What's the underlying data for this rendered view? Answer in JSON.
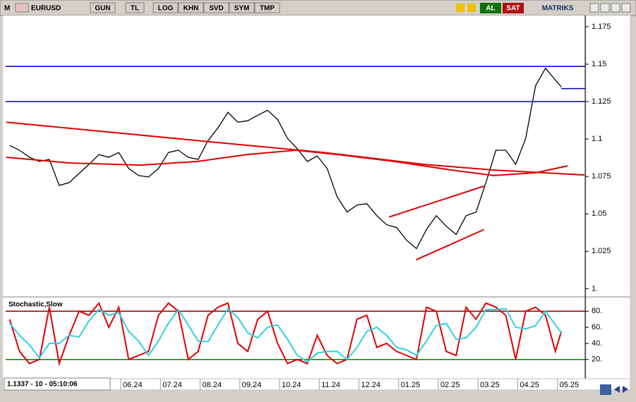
{
  "toolbar": {
    "logo": "M",
    "symbol": "EURUSD",
    "buttons": [
      "GUN",
      "TL",
      "LOG",
      "KHN",
      "SVD",
      "SYM",
      "TMP"
    ],
    "buy": "AL",
    "sell": "SAT",
    "brand": "MATRIKS"
  },
  "status": "1.1337 - 10 - 05:10:06",
  "chart_data": [
    {
      "type": "line",
      "x": [
        3.2,
        3.45,
        3.7,
        3.95,
        4.2,
        4.45,
        4.7,
        4.95,
        5.2,
        5.45,
        5.7,
        5.95,
        6.2,
        6.45,
        6.7,
        6.95,
        7.2,
        7.45,
        7.7,
        7.95,
        8.2,
        8.45,
        8.7,
        8.95,
        9.2,
        9.45,
        9.7,
        9.95,
        10.2,
        10.45,
        10.7,
        10.95,
        11.2,
        11.45,
        11.7,
        11.95,
        12.2,
        12.45,
        12.7,
        12.95,
        13.2,
        13.45,
        13.7,
        13.95,
        14.2,
        14.45,
        14.7,
        14.95,
        15.2,
        15.45,
        15.7,
        15.95,
        16.2,
        16.45,
        16.7,
        16.95,
        17.1
      ],
      "xlim": [
        3.1,
        17.7
      ],
      "xticks": [
        {
          "value": 6,
          "label": "06.24"
        },
        {
          "value": 7,
          "label": "07.24"
        },
        {
          "value": 8,
          "label": "08.24"
        },
        {
          "value": 9,
          "label": "09.24"
        },
        {
          "value": 10,
          "label": "10.24"
        },
        {
          "value": 11,
          "label": "11.24"
        },
        {
          "value": 12,
          "label": "12.24"
        },
        {
          "value": 13,
          "label": "01.25"
        },
        {
          "value": 14,
          "label": "02.25"
        },
        {
          "value": 15,
          "label": "03.25"
        },
        {
          "value": 16,
          "label": "04.25"
        },
        {
          "value": 17,
          "label": "05.25"
        }
      ],
      "ylim": [
        0.995,
        1.1825
      ],
      "yticks": [
        1.175,
        1.15,
        1.125,
        1.1,
        1.075,
        1.05,
        1.025,
        {
          "value": 1,
          "label": "1."
        }
      ],
      "series": [
        {
          "color": "#000000",
          "values": [
            1.0957,
            1.0925,
            1.0878,
            1.085,
            1.0864,
            1.069,
            1.0709,
            1.077,
            1.0831,
            1.0896,
            1.0878,
            1.091,
            1.0803,
            1.0756,
            1.0746,
            1.0803,
            1.091,
            1.0925,
            1.0878,
            1.0864,
            1.099,
            1.1075,
            1.1178,
            1.1112,
            1.1122,
            1.1159,
            1.1192,
            1.1131,
            1.1004,
            1.0934,
            1.085,
            1.0887,
            1.0803,
            1.0615,
            1.0512,
            1.0559,
            1.0568,
            1.0488,
            1.0427,
            1.0409,
            1.0324,
            1.0268,
            1.0395,
            1.0488,
            1.0418,
            1.0362,
            1.0488,
            1.0512,
            1.0709,
            1.0925,
            1.0925,
            1.0831,
            1.1004,
            1.1356,
            1.1473,
            1.1394,
            1.1347
          ]
        },
        {
          "color": "#e00000",
          "x": [
            3.12,
            8.28,
            11.12,
            13.62,
            15.4,
            17.68
          ],
          "values": [
            1.1112,
            1.0981,
            1.091,
            1.0831,
            1.0793,
            1.076
          ]
        },
        {
          "color": "#e00000",
          "x": [
            3.12,
            4.72,
            6.5,
            7.92,
            9.17,
            10.41,
            11.48,
            12.9,
            14.33,
            15.4,
            16.46,
            17.26
          ],
          "values": [
            1.0878,
            1.084,
            1.0826,
            1.085,
            1.0896,
            1.0925,
            1.0896,
            1.085,
            1.0793,
            1.0756,
            1.0775,
            1.0821
          ]
        },
        {
          "color": "#e00000",
          "x": [
            12.76,
            15.15
          ],
          "values": [
            1.0479,
            1.0685
          ]
        },
        {
          "color": "#e00000",
          "x": [
            13.44,
            15.15
          ],
          "values": [
            1.0193,
            1.0395
          ]
        }
      ],
      "hlines": [
        {
          "value": 1.1485,
          "color": "#0000c0"
        },
        {
          "value": 1.125,
          "color": "#0000c0"
        }
      ],
      "last": {
        "value": 1.1337,
        "color": "#0000c0"
      }
    },
    {
      "type": "line",
      "title": "Stochastic,Slow",
      "x": [
        3.2,
        3.45,
        3.7,
        3.95,
        4.2,
        4.45,
        4.7,
        4.95,
        5.2,
        5.45,
        5.7,
        5.95,
        6.2,
        6.45,
        6.7,
        6.95,
        7.2,
        7.45,
        7.7,
        7.95,
        8.2,
        8.45,
        8.7,
        8.95,
        9.2,
        9.45,
        9.7,
        9.95,
        10.2,
        10.45,
        10.7,
        10.95,
        11.2,
        11.45,
        11.7,
        11.95,
        12.2,
        12.45,
        12.7,
        12.95,
        13.2,
        13.45,
        13.7,
        13.95,
        14.2,
        14.45,
        14.7,
        14.95,
        15.2,
        15.45,
        15.7,
        15.95,
        16.2,
        16.45,
        16.7,
        16.95,
        17.1
      ],
      "xlim": [
        3.1,
        17.7
      ],
      "ylim": [
        -3,
        96
      ],
      "yticks": [
        {
          "value": 80,
          "label": "80."
        },
        {
          "value": 60,
          "label": "60."
        },
        {
          "value": 40,
          "label": "40."
        },
        {
          "value": 20,
          "label": "20."
        }
      ],
      "series": [
        {
          "color": "#e00000",
          "values": [
            70,
            30,
            15,
            20,
            85,
            15,
            50,
            80,
            75,
            90,
            60,
            85,
            20,
            25,
            30,
            75,
            90,
            80,
            20,
            30,
            75,
            85,
            90,
            40,
            30,
            70,
            80,
            40,
            15,
            20,
            15,
            50,
            25,
            15,
            20,
            70,
            75,
            35,
            40,
            30,
            25,
            20,
            85,
            80,
            30,
            25,
            85,
            70,
            90,
            85,
            75,
            20,
            80,
            85,
            75,
            30,
            55
          ]
        },
        {
          "color": "#30d0e0",
          "values": [
            65,
            50,
            38,
            22,
            40,
            40,
            50,
            48,
            68,
            82,
            75,
            78,
            55,
            43,
            25,
            43,
            65,
            82,
            63,
            43,
            42,
            63,
            83,
            72,
            53,
            47,
            60,
            63,
            45,
            25,
            17,
            28,
            30,
            30,
            20,
            35,
            55,
            60,
            50,
            35,
            32,
            25,
            43,
            62,
            65,
            45,
            47,
            60,
            82,
            82,
            83,
            60,
            58,
            62,
            80,
            63,
            53
          ]
        }
      ],
      "hlines": [
        {
          "value": 80,
          "color": "#8b0000"
        },
        {
          "value": 20,
          "color": "#008000"
        }
      ]
    }
  ]
}
